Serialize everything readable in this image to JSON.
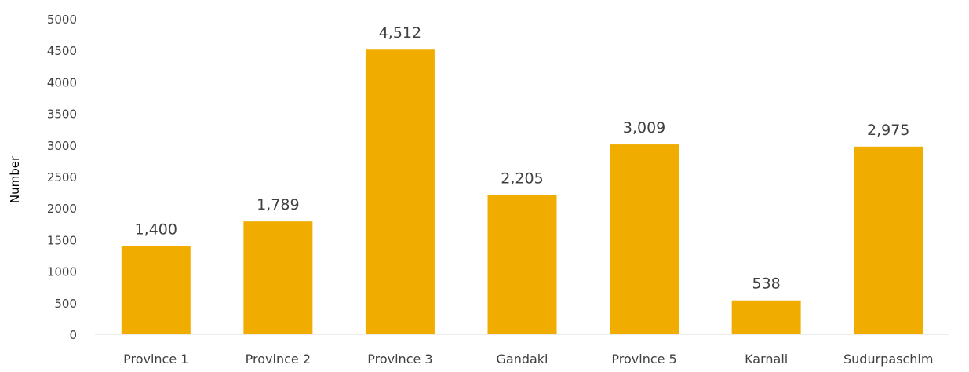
{
  "chart_data": {
    "type": "bar",
    "title": "",
    "xlabel": "",
    "ylabel": "Number",
    "categories": [
      "Province 1",
      "Province 2",
      "Province 3",
      "Gandaki",
      "Province 5",
      "Karnali",
      "Sudurpaschim"
    ],
    "values": [
      1400,
      1789,
      4512,
      2205,
      3009,
      538,
      2975
    ],
    "data_labels": [
      "1,400",
      "1,789",
      "4,512",
      "2,205",
      "3,009",
      "538",
      "2,975"
    ],
    "ylim": [
      0,
      5000
    ],
    "yticks": [
      0,
      500,
      1000,
      1500,
      2000,
      2500,
      3000,
      3500,
      4000,
      4500,
      5000
    ],
    "grid": false,
    "legend": "none",
    "colors": {
      "bar": "#f0ad00",
      "axis": "#d9d9d9",
      "text": "#404040"
    }
  }
}
